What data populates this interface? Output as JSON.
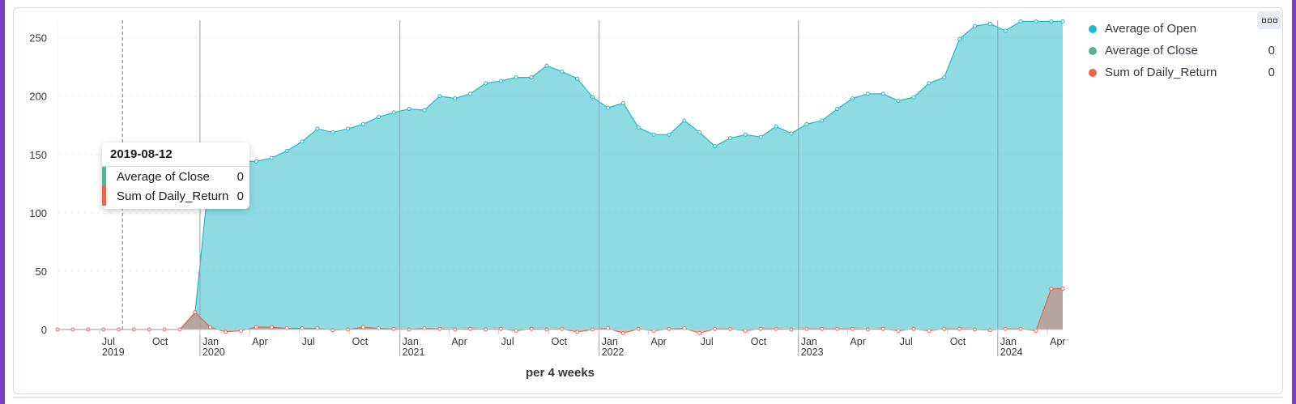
{
  "colors": {
    "open": "#1fb8c7",
    "close": "#54b399",
    "daily_return": "#e7664c",
    "frame": "#7b3fc4"
  },
  "menu": {
    "icon": "three-dots-icon"
  },
  "tooltip": {
    "date": "2019-08-12",
    "rows": [
      {
        "label": "Average of Close",
        "value": "0"
      },
      {
        "label": "Sum of Daily_Return",
        "value": "0"
      }
    ]
  },
  "legend": [
    {
      "label": "Average of Open",
      "value": ""
    },
    {
      "label": "Average of Close",
      "value": "0"
    },
    {
      "label": "Sum of Daily_Return",
      "value": "0"
    }
  ],
  "chart_data": {
    "type": "area",
    "xlabel": "per 4 weeks",
    "ylim": [
      0,
      265
    ],
    "yticks": [
      0,
      50,
      100,
      150,
      200,
      250
    ],
    "grid": "horizontal dashed",
    "legend_position": "right",
    "xlim": [
      "2019-04-15",
      "2024-04-29"
    ],
    "xticks": [
      {
        "label": "Jul",
        "sub": "2019",
        "date": "2019-07-01"
      },
      {
        "label": "Oct",
        "sub": "",
        "date": "2019-10-01"
      },
      {
        "label": "Jan",
        "sub": "2020",
        "date": "2020-01-01"
      },
      {
        "label": "Apr",
        "sub": "",
        "date": "2020-04-01"
      },
      {
        "label": "Jul",
        "sub": "",
        "date": "2020-07-01"
      },
      {
        "label": "Oct",
        "sub": "",
        "date": "2020-10-01"
      },
      {
        "label": "Jan",
        "sub": "2021",
        "date": "2021-01-01"
      },
      {
        "label": "Apr",
        "sub": "",
        "date": "2021-04-01"
      },
      {
        "label": "Jul",
        "sub": "",
        "date": "2021-07-01"
      },
      {
        "label": "Oct",
        "sub": "",
        "date": "2021-10-01"
      },
      {
        "label": "Jan",
        "sub": "2022",
        "date": "2022-01-01"
      },
      {
        "label": "Apr",
        "sub": "",
        "date": "2022-04-01"
      },
      {
        "label": "Jul",
        "sub": "",
        "date": "2022-07-01"
      },
      {
        "label": "Oct",
        "sub": "",
        "date": "2022-10-01"
      },
      {
        "label": "Jan",
        "sub": "2023",
        "date": "2023-01-01"
      },
      {
        "label": "Apr",
        "sub": "",
        "date": "2023-04-01"
      },
      {
        "label": "Jul",
        "sub": "",
        "date": "2023-07-01"
      },
      {
        "label": "Oct",
        "sub": "",
        "date": "2023-10-01"
      },
      {
        "label": "Jan",
        "sub": "2024",
        "date": "2024-01-01"
      },
      {
        "label": "Apr",
        "sub": "",
        "date": "2024-04-01"
      }
    ],
    "year_lines": [
      "2020-01-01",
      "2021-01-01",
      "2022-01-01",
      "2023-01-01",
      "2024-01-01"
    ],
    "cursor_date": "2019-08-12",
    "x": [
      "2019-04-15",
      "2019-05-13",
      "2019-06-10",
      "2019-07-08",
      "2019-08-05",
      "2019-09-02",
      "2019-09-30",
      "2019-10-28",
      "2019-11-25",
      "2019-12-23",
      "2020-01-20",
      "2020-02-17",
      "2020-03-16",
      "2020-04-13",
      "2020-05-11",
      "2020-06-08",
      "2020-07-06",
      "2020-08-03",
      "2020-08-31",
      "2020-09-28",
      "2020-10-26",
      "2020-11-23",
      "2020-12-21",
      "2021-01-18",
      "2021-02-15",
      "2021-03-15",
      "2021-04-12",
      "2021-05-10",
      "2021-06-07",
      "2021-07-05",
      "2021-08-02",
      "2021-08-30",
      "2021-09-27",
      "2021-10-25",
      "2021-11-22",
      "2021-12-20",
      "2022-01-17",
      "2022-02-14",
      "2022-03-14",
      "2022-04-11",
      "2022-05-09",
      "2022-06-06",
      "2022-07-04",
      "2022-08-01",
      "2022-08-29",
      "2022-09-26",
      "2022-10-24",
      "2022-11-21",
      "2022-12-19",
      "2023-01-16",
      "2023-02-13",
      "2023-03-13",
      "2023-04-10",
      "2023-05-08",
      "2023-06-05",
      "2023-07-03",
      "2023-07-31",
      "2023-08-28",
      "2023-09-25",
      "2023-10-23",
      "2023-11-20",
      "2023-12-18",
      "2024-01-15",
      "2024-02-12",
      "2024-03-11",
      "2024-04-08",
      "2024-04-29"
    ],
    "series": [
      {
        "name": "Average of Open",
        "values": [
          0,
          0,
          0,
          0,
          0,
          0,
          0,
          0,
          0,
          14.7,
          141,
          144,
          144,
          144,
          147,
          153,
          161,
          172,
          169,
          172,
          176,
          182,
          186,
          189,
          188,
          200,
          198,
          202,
          211,
          213,
          216,
          216,
          226,
          221,
          215,
          199,
          190,
          194,
          173,
          167,
          167,
          179,
          169,
          157,
          164,
          167,
          165,
          174,
          168,
          176,
          179,
          189,
          198,
          202,
          202,
          196,
          199,
          211,
          216,
          249,
          260,
          262,
          256,
          264,
          264,
          264,
          264
        ]
      },
      {
        "name": "Average of Close",
        "values": [
          0,
          0,
          0,
          0,
          0,
          0,
          0,
          0,
          0,
          0,
          0,
          0,
          0,
          0,
          0,
          0,
          0,
          0,
          0,
          0,
          0,
          0,
          0,
          0,
          0,
          0,
          0,
          0,
          0,
          0,
          0,
          0,
          0,
          0,
          0,
          0,
          0,
          0,
          0,
          0,
          0,
          0,
          0,
          0,
          0,
          0,
          0,
          0,
          0,
          0,
          0,
          0,
          0,
          0,
          0,
          0,
          0,
          0,
          0,
          0,
          0,
          0,
          0,
          0,
          0,
          0,
          0
        ]
      },
      {
        "name": "Sum of Daily_Return",
        "values": [
          0,
          0,
          0,
          0,
          0,
          0,
          0,
          0,
          0,
          14.8,
          2,
          -2,
          -1,
          2,
          2,
          1,
          1,
          1,
          -0.5,
          0,
          2,
          1,
          0.5,
          0,
          1,
          0.5,
          0,
          0.5,
          0,
          0.5,
          -1,
          0.5,
          0,
          0.5,
          -2,
          0,
          1,
          -3,
          0.5,
          -1,
          0.5,
          1,
          -3,
          0.5,
          0.5,
          -1,
          0.5,
          0.5,
          0,
          0.5,
          0.5,
          0.5,
          0.5,
          0,
          0.5,
          -1,
          0.5,
          -1,
          0.5,
          0.5,
          0,
          -0.5,
          0.5,
          0.5,
          -1,
          35,
          35
        ]
      }
    ]
  }
}
